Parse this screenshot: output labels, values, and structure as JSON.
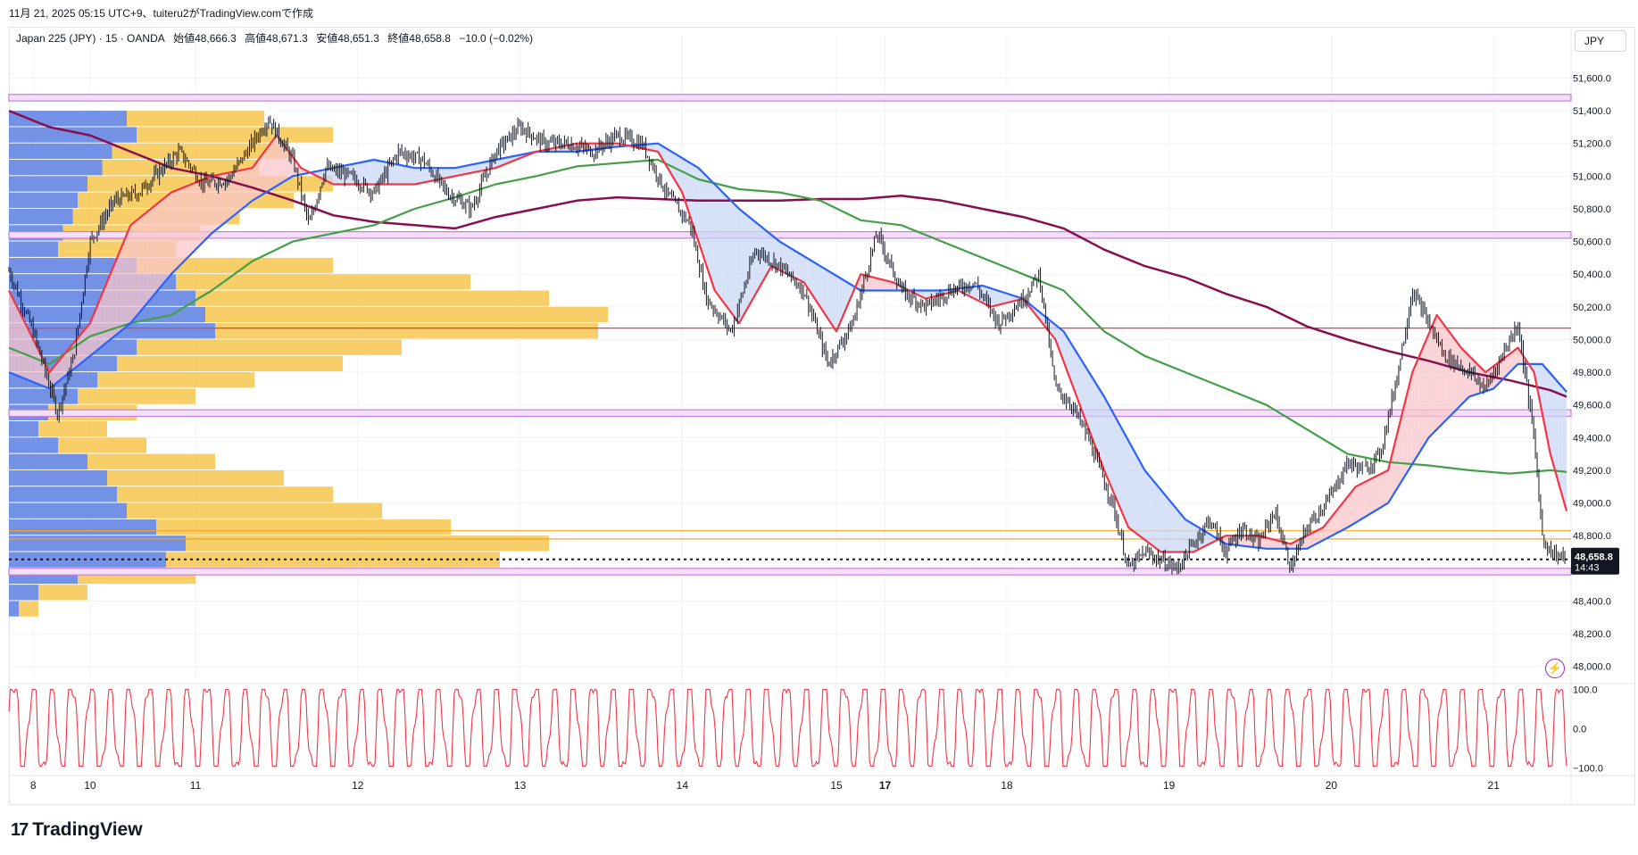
{
  "header": {
    "created_text": "11月 21, 2025 05:15 UTC+9、tuiteru2がTradingView.comで作成"
  },
  "symbol": {
    "name": "Japan 225 (JPY) · 15 · OANDA",
    "open": "始値48,666.3",
    "high": "高値48,671.3",
    "low": "安値48,651.3",
    "close": "終値48,658.8",
    "change": "−10.0 (−0.02%)"
  },
  "currency_label": "JPY",
  "price_marker": {
    "value": "48,658.8",
    "timer": "14:43"
  },
  "brand": {
    "logo": "17",
    "name": "TradingView"
  },
  "icons": {
    "alert": "lightning-icon",
    "logo": "tradingview-logo-icon"
  },
  "colors": {
    "candle": "#131722",
    "ema_fast": "#f23645",
    "ema_mid": "#2962ff",
    "ema_slow": "#43a047",
    "ema_long": "#880e4f",
    "cloud_up": "#f8c6c9",
    "cloud_down": "#c9d7f5",
    "vp_up": "#f5c242",
    "vp_down": "#5b7ee0",
    "zone": "#c77ddb",
    "hline_red": "#f23645",
    "hline_orange": "#f5a623",
    "oscillator": "#f23645"
  },
  "chart_data": [
    {
      "type": "line",
      "description_of_series": "OHLC candles (15m) with EMAs and volume profile",
      "price_axis": {
        "unit": "JPY",
        "ylim": [
          47900,
          51750
        ],
        "ticks": [
          51600,
          51400,
          51200,
          51000,
          50800,
          50600,
          50400,
          50200,
          50000,
          49800,
          49600,
          49400,
          49200,
          49000,
          48800,
          48600,
          48400,
          48200,
          48000
        ],
        "tick_labels": [
          "51,600.0",
          "51,400.0",
          "51,200.0",
          "51,000.0",
          "50,800.0",
          "50,600.0",
          "50,400.0",
          "50,200.0",
          "50,000.0",
          "49,800.0",
          "49,600.0",
          "49,400.0",
          "49,200.0",
          "49,000.0",
          "48,800.0",
          "48,600.0",
          "48,400.0",
          "48,200.0",
          "48,000.0"
        ]
      },
      "x_axis": {
        "labels": [
          "8",
          "10",
          "11",
          "12",
          "13",
          "14",
          "15",
          "17",
          "18",
          "19",
          "20",
          "21"
        ],
        "label_values": [
          0.3,
          1.0,
          2.3,
          4.3,
          6.3,
          8.3,
          10.2,
          10.8,
          12.3,
          14.3,
          16.3,
          18.3
        ],
        "xlim": [
          0,
          19.2
        ]
      },
      "price_series": [
        [
          0.0,
          50420
        ],
        [
          0.3,
          50050
        ],
        [
          0.6,
          49550
        ],
        [
          0.8,
          49900
        ],
        [
          1.0,
          50600
        ],
        [
          1.3,
          50850
        ],
        [
          1.6,
          50900
        ],
        [
          1.9,
          51050
        ],
        [
          2.1,
          51150
        ],
        [
          2.4,
          50950
        ],
        [
          2.7,
          50980
        ],
        [
          3.0,
          51200
        ],
        [
          3.2,
          51350
        ],
        [
          3.5,
          51100
        ],
        [
          3.7,
          50700
        ],
        [
          3.9,
          51050
        ],
        [
          4.2,
          51000
        ],
        [
          4.5,
          50900
        ],
        [
          4.8,
          51150
        ],
        [
          5.1,
          51100
        ],
        [
          5.4,
          50900
        ],
        [
          5.7,
          50800
        ],
        [
          6.0,
          51150
        ],
        [
          6.3,
          51300
        ],
        [
          6.6,
          51200
        ],
        [
          6.9,
          51200
        ],
        [
          7.2,
          51150
        ],
        [
          7.5,
          51250
        ],
        [
          7.8,
          51200
        ],
        [
          8.1,
          50900
        ],
        [
          8.4,
          50700
        ],
        [
          8.6,
          50250
        ],
        [
          8.9,
          50050
        ],
        [
          9.2,
          50550
        ],
        [
          9.5,
          50450
        ],
        [
          9.8,
          50300
        ],
        [
          10.1,
          49850
        ],
        [
          10.4,
          50100
        ],
        [
          10.7,
          50650
        ],
        [
          11.0,
          50300
        ],
        [
          11.3,
          50200
        ],
        [
          11.6,
          50300
        ],
        [
          11.9,
          50350
        ],
        [
          12.2,
          50100
        ],
        [
          12.5,
          50250
        ],
        [
          12.7,
          50400
        ],
        [
          12.9,
          49700
        ],
        [
          13.1,
          49600
        ],
        [
          13.3,
          49400
        ],
        [
          13.6,
          49000
        ],
        [
          13.8,
          48600
        ],
        [
          14.0,
          48700
        ],
        [
          14.2,
          48650
        ],
        [
          14.4,
          48600
        ],
        [
          14.6,
          48750
        ],
        [
          14.8,
          48900
        ],
        [
          15.0,
          48700
        ],
        [
          15.2,
          48850
        ],
        [
          15.4,
          48750
        ],
        [
          15.6,
          48950
        ],
        [
          15.8,
          48600
        ],
        [
          16.0,
          48850
        ],
        [
          16.3,
          49050
        ],
        [
          16.5,
          49250
        ],
        [
          16.7,
          49200
        ],
        [
          16.9,
          49300
        ],
        [
          17.1,
          49750
        ],
        [
          17.3,
          50300
        ],
        [
          17.5,
          50100
        ],
        [
          17.7,
          49900
        ],
        [
          18.0,
          49800
        ],
        [
          18.2,
          49700
        ],
        [
          18.4,
          49900
        ],
        [
          18.6,
          50100
        ],
        [
          18.8,
          49400
        ],
        [
          18.9,
          48800
        ],
        [
          19.0,
          48700
        ],
        [
          19.2,
          48660
        ]
      ],
      "ema_fast": [
        [
          0.0,
          50300
        ],
        [
          0.5,
          49800
        ],
        [
          1.0,
          50100
        ],
        [
          1.5,
          50700
        ],
        [
          2.0,
          50900
        ],
        [
          2.5,
          51000
        ],
        [
          3.0,
          51050
        ],
        [
          3.3,
          51250
        ],
        [
          3.6,
          51050
        ],
        [
          4.0,
          50950
        ],
        [
          4.5,
          50950
        ],
        [
          5.0,
          50950
        ],
        [
          5.5,
          51000
        ],
        [
          6.0,
          51050
        ],
        [
          6.5,
          51150
        ],
        [
          7.0,
          51200
        ],
        [
          7.5,
          51200
        ],
        [
          8.0,
          51150
        ],
        [
          8.3,
          50900
        ],
        [
          8.7,
          50300
        ],
        [
          9.0,
          50100
        ],
        [
          9.4,
          50450
        ],
        [
          9.8,
          50350
        ],
        [
          10.2,
          50050
        ],
        [
          10.5,
          50400
        ],
        [
          10.9,
          50350
        ],
        [
          11.3,
          50250
        ],
        [
          11.7,
          50300
        ],
        [
          12.1,
          50200
        ],
        [
          12.5,
          50250
        ],
        [
          12.9,
          50000
        ],
        [
          13.2,
          49600
        ],
        [
          13.5,
          49200
        ],
        [
          13.8,
          48850
        ],
        [
          14.2,
          48700
        ],
        [
          14.6,
          48700
        ],
        [
          15.0,
          48800
        ],
        [
          15.4,
          48800
        ],
        [
          15.8,
          48750
        ],
        [
          16.2,
          48850
        ],
        [
          16.6,
          49100
        ],
        [
          17.0,
          49200
        ],
        [
          17.3,
          49800
        ],
        [
          17.6,
          50150
        ],
        [
          17.9,
          49950
        ],
        [
          18.2,
          49800
        ],
        [
          18.6,
          49950
        ],
        [
          18.8,
          49800
        ],
        [
          19.0,
          49300
        ],
        [
          19.2,
          48950
        ]
      ],
      "ema_mid": [
        [
          0.0,
          49800
        ],
        [
          0.5,
          49700
        ],
        [
          1.0,
          49900
        ],
        [
          1.5,
          50100
        ],
        [
          2.0,
          50400
        ],
        [
          2.5,
          50650
        ],
        [
          3.0,
          50850
        ],
        [
          3.5,
          51000
        ],
        [
          4.0,
          51050
        ],
        [
          4.5,
          51100
        ],
        [
          5.0,
          51050
        ],
        [
          5.5,
          51050
        ],
        [
          6.0,
          51100
        ],
        [
          6.5,
          51150
        ],
        [
          7.0,
          51150
        ],
        [
          7.5,
          51180
        ],
        [
          8.0,
          51200
        ],
        [
          8.5,
          51050
        ],
        [
          9.0,
          50800
        ],
        [
          9.5,
          50600
        ],
        [
          10.0,
          50450
        ],
        [
          10.5,
          50300
        ],
        [
          11.0,
          50300
        ],
        [
          11.5,
          50300
        ],
        [
          12.0,
          50330
        ],
        [
          12.5,
          50250
        ],
        [
          13.0,
          50050
        ],
        [
          13.5,
          49650
        ],
        [
          14.0,
          49200
        ],
        [
          14.5,
          48900
        ],
        [
          15.0,
          48750
        ],
        [
          15.5,
          48720
        ],
        [
          16.0,
          48720
        ],
        [
          16.5,
          48850
        ],
        [
          17.0,
          49000
        ],
        [
          17.5,
          49400
        ],
        [
          18.0,
          49650
        ],
        [
          18.3,
          49700
        ],
        [
          18.6,
          49850
        ],
        [
          18.9,
          49850
        ],
        [
          19.2,
          49680
        ]
      ],
      "ema_slow": [
        [
          0.0,
          49950
        ],
        [
          0.5,
          49850
        ],
        [
          1.0,
          50020
        ],
        [
          1.5,
          50100
        ],
        [
          2.0,
          50150
        ],
        [
          2.5,
          50300
        ],
        [
          3.0,
          50480
        ],
        [
          3.5,
          50600
        ],
        [
          4.0,
          50650
        ],
        [
          4.5,
          50700
        ],
        [
          5.0,
          50800
        ],
        [
          5.5,
          50870
        ],
        [
          6.0,
          50950
        ],
        [
          6.5,
          51000
        ],
        [
          7.0,
          51060
        ],
        [
          7.5,
          51080
        ],
        [
          8.0,
          51100
        ],
        [
          8.5,
          50980
        ],
        [
          9.0,
          50920
        ],
        [
          9.5,
          50900
        ],
        [
          10.0,
          50850
        ],
        [
          10.5,
          50730
        ],
        [
          11.0,
          50700
        ],
        [
          11.5,
          50600
        ],
        [
          12.0,
          50500
        ],
        [
          12.5,
          50400
        ],
        [
          13.0,
          50300
        ],
        [
          13.5,
          50050
        ],
        [
          14.0,
          49900
        ],
        [
          14.5,
          49800
        ],
        [
          15.0,
          49700
        ],
        [
          15.5,
          49600
        ],
        [
          16.0,
          49450
        ],
        [
          16.5,
          49300
        ],
        [
          17.0,
          49250
        ],
        [
          17.5,
          49230
        ],
        [
          18.0,
          49200
        ],
        [
          18.5,
          49180
        ],
        [
          19.0,
          49200
        ],
        [
          19.2,
          49190
        ]
      ],
      "ema_long": [
        [
          0.0,
          51400
        ],
        [
          0.5,
          51300
        ],
        [
          1.0,
          51250
        ],
        [
          1.5,
          51150
        ],
        [
          2.0,
          51050
        ],
        [
          2.5,
          51000
        ],
        [
          3.0,
          50930
        ],
        [
          3.5,
          50850
        ],
        [
          4.0,
          50760
        ],
        [
          4.5,
          50720
        ],
        [
          5.0,
          50700
        ],
        [
          5.5,
          50680
        ],
        [
          6.0,
          50750
        ],
        [
          6.5,
          50800
        ],
        [
          7.0,
          50850
        ],
        [
          7.5,
          50870
        ],
        [
          8.0,
          50860
        ],
        [
          8.5,
          50850
        ],
        [
          9.0,
          50850
        ],
        [
          9.5,
          50850
        ],
        [
          10.0,
          50860
        ],
        [
          10.5,
          50860
        ],
        [
          11.0,
          50880
        ],
        [
          11.5,
          50850
        ],
        [
          12.0,
          50800
        ],
        [
          12.5,
          50750
        ],
        [
          13.0,
          50680
        ],
        [
          13.5,
          50550
        ],
        [
          14.0,
          50450
        ],
        [
          14.5,
          50380
        ],
        [
          15.0,
          50280
        ],
        [
          15.5,
          50200
        ],
        [
          16.0,
          50080
        ],
        [
          16.5,
          50000
        ],
        [
          17.0,
          49930
        ],
        [
          17.5,
          49870
        ],
        [
          18.0,
          49800
        ],
        [
          18.5,
          49750
        ],
        [
          19.0,
          49690
        ],
        [
          19.2,
          49650
        ]
      ],
      "horizontal_lines": [
        {
          "price": 50070,
          "color": "#f23645"
        },
        {
          "price": 48830,
          "color": "#f5a623"
        },
        {
          "price": 48780,
          "color": "#f5a623"
        },
        {
          "price": 48655,
          "color": "#131722",
          "dotted": true
        }
      ],
      "zones": [
        {
          "from": 51460,
          "to": 51500
        },
        {
          "from": 50620,
          "to": 50660
        },
        {
          "from": 49530,
          "to": 49570
        },
        {
          "from": 48560,
          "to": 48600
        }
      ],
      "volume_profile": [
        {
          "price": 51350,
          "up": 140,
          "down": 120
        },
        {
          "price": 51250,
          "up": 200,
          "down": 130
        },
        {
          "price": 51150,
          "up": 180,
          "down": 105
        },
        {
          "price": 51050,
          "up": 160,
          "down": 95
        },
        {
          "price": 50950,
          "up": 250,
          "down": 80
        },
        {
          "price": 50850,
          "up": 220,
          "down": 70
        },
        {
          "price": 50750,
          "up": 170,
          "down": 65
        },
        {
          "price": 50650,
          "up": 140,
          "down": 55
        },
        {
          "price": 50550,
          "up": 120,
          "down": 50
        },
        {
          "price": 50450,
          "up": 200,
          "down": 130
        },
        {
          "price": 50350,
          "up": 300,
          "down": 170
        },
        {
          "price": 50250,
          "up": 360,
          "down": 190
        },
        {
          "price": 50150,
          "up": 410,
          "down": 200
        },
        {
          "price": 50050,
          "up": 390,
          "down": 210
        },
        {
          "price": 49950,
          "up": 270,
          "down": 130
        },
        {
          "price": 49850,
          "up": 230,
          "down": 110
        },
        {
          "price": 49750,
          "up": 160,
          "down": 90
        },
        {
          "price": 49650,
          "up": 120,
          "down": 70
        },
        {
          "price": 49550,
          "up": 90,
          "down": 40
        },
        {
          "price": 49450,
          "up": 70,
          "down": 30
        },
        {
          "price": 49350,
          "up": 90,
          "down": 50
        },
        {
          "price": 49250,
          "up": 130,
          "down": 80
        },
        {
          "price": 49150,
          "up": 180,
          "down": 100
        },
        {
          "price": 49050,
          "up": 220,
          "down": 110
        },
        {
          "price": 48950,
          "up": 260,
          "down": 120
        },
        {
          "price": 48850,
          "up": 300,
          "down": 150
        },
        {
          "price": 48750,
          "up": 370,
          "down": 180
        },
        {
          "price": 48650,
          "up": 340,
          "down": 160
        },
        {
          "price": 48550,
          "up": 120,
          "down": 70
        },
        {
          "price": 48450,
          "up": 50,
          "down": 30
        },
        {
          "price": 48350,
          "up": 20,
          "down": 10
        }
      ]
    },
    {
      "type": "line",
      "oscillator_axis": {
        "ylim": [
          -110,
          110
        ],
        "ticks": [
          100,
          0,
          -100
        ],
        "tick_labels": [
          "100.0",
          "0.0",
          "−100.0"
        ]
      },
      "cycles_per_day": 4.2,
      "min": -95,
      "max": 100
    }
  ]
}
